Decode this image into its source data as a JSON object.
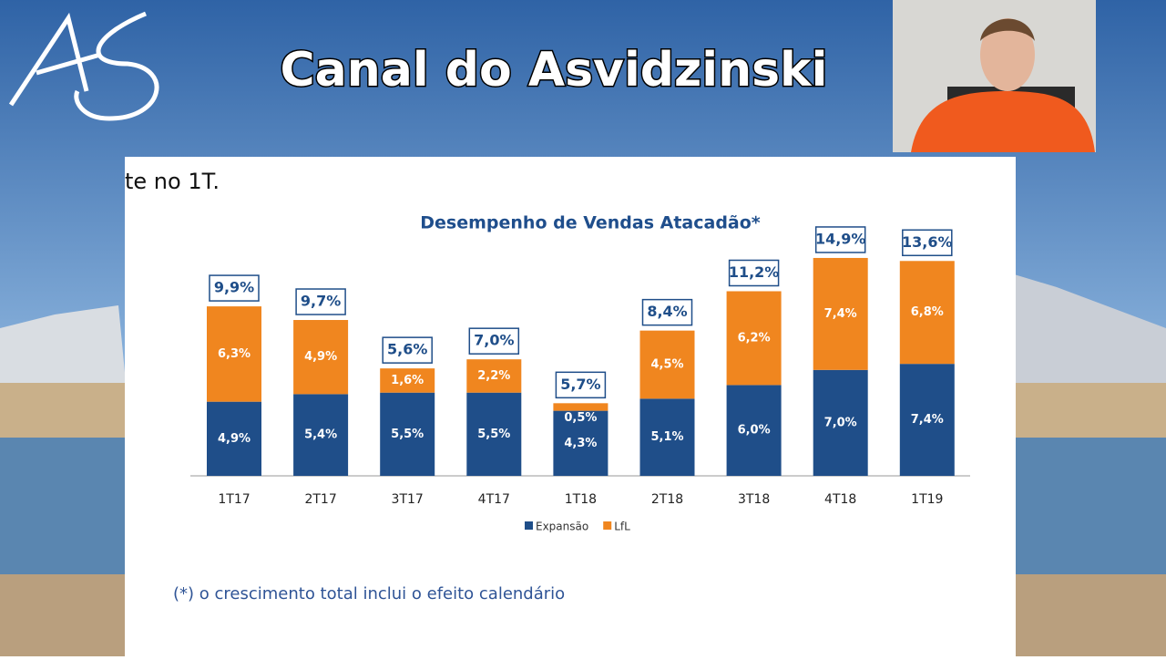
{
  "channel_title": "Canal do Asvidzinski",
  "slide_text": "te no 1T.",
  "footnote": "(*) o crescimento total inclui o efeito calendário",
  "chart_data": {
    "type": "bar",
    "stacked": true,
    "title": "Desempenho de Vendas Atacadão*",
    "categories": [
      "1T17",
      "2T17",
      "3T17",
      "4T17",
      "1T18",
      "2T18",
      "3T18",
      "4T18",
      "1T19"
    ],
    "series": [
      {
        "name": "Expansão",
        "color": "#1f4e89",
        "values": [
          4.9,
          5.4,
          5.5,
          5.5,
          4.3,
          5.1,
          6.0,
          7.0,
          7.4
        ],
        "value_labels": [
          "4,9%",
          "5,4%",
          "5,5%",
          "5,5%",
          "4,3%",
          "5,1%",
          "6,0%",
          "7,0%",
          "7,4%"
        ]
      },
      {
        "name": "LfL",
        "color": "#f0861f",
        "values": [
          6.3,
          4.9,
          1.6,
          2.2,
          0.5,
          4.5,
          6.2,
          7.4,
          6.8
        ],
        "value_labels": [
          "6,3%",
          "4,9%",
          "1,6%",
          "2,2%",
          "0,5%",
          "4,5%",
          "6,2%",
          "7,4%",
          "6,8%"
        ]
      }
    ],
    "totals": {
      "values": [
        9.9,
        9.7,
        5.6,
        7.0,
        5.7,
        8.4,
        11.2,
        14.9,
        13.6
      ],
      "value_labels": [
        "9,9%",
        "9,7%",
        "5,6%",
        "7,0%",
        "5,7%",
        "8,4%",
        "11,2%",
        "14,9%",
        "13,6%"
      ]
    },
    "legend": "bottom"
  }
}
